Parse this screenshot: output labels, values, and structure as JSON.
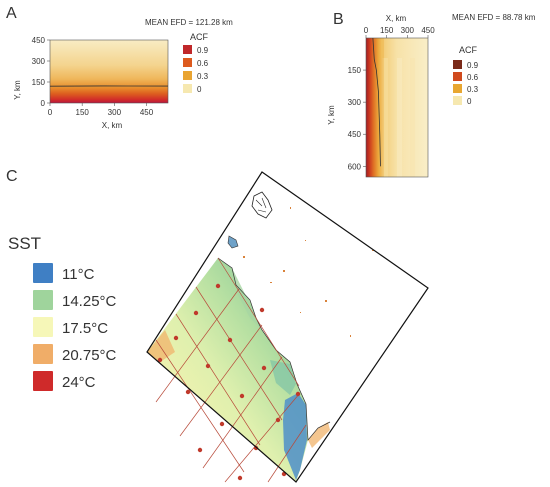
{
  "panels": {
    "A": {
      "letter": "A",
      "mean_efd": "MEAN EFD = 121.28 km",
      "xlabel": "X, km",
      "ylabel": "Y, km",
      "x_ticks": [
        "0",
        "150",
        "300",
        "450"
      ],
      "y_ticks": [
        "450",
        "300",
        "150",
        "0"
      ],
      "legend_title": "ACF",
      "legend_labels": [
        "0.9",
        "0.6",
        "0.3",
        "0"
      ]
    },
    "B": {
      "letter": "B",
      "mean_efd": "MEAN EFD = 88.78 km",
      "xlabel": "X, km",
      "ylabel": "Y, km",
      "x_ticks": [
        "0",
        "150",
        "300",
        "450"
      ],
      "y_ticks": [
        "150",
        "300",
        "450",
        "600"
      ],
      "legend_title": "ACF",
      "legend_labels": [
        "0.9",
        "0.6",
        "0.3",
        "0"
      ]
    },
    "C": {
      "letter": "C",
      "sst_title": "SST",
      "sst_labels": [
        "11°C",
        "14.25°C",
        "17.5°C",
        "20.75°C",
        "24°C"
      ]
    }
  },
  "chart_data": [
    {
      "type": "heatmap",
      "panel": "A",
      "xlabel": "X, km",
      "ylabel": "Y, km",
      "xlim": [
        0,
        550
      ],
      "ylim": [
        0,
        450
      ],
      "x_ticks": [
        0,
        150,
        300,
        450
      ],
      "y_ticks": [
        0,
        150,
        300,
        450
      ],
      "efd_km": 121.28,
      "colorbar": {
        "title": "ACF",
        "ticks": [
          0.9,
          0.6,
          0.3,
          0
        ],
        "colors": [
          "#c0282a",
          "#dd5a1e",
          "#e9a431",
          "#f6e8b0"
        ]
      },
      "acf_by_y": [
        {
          "y": 0,
          "acf": 0.95
        },
        {
          "y": 20,
          "acf": 0.9
        },
        {
          "y": 40,
          "acf": 0.8
        },
        {
          "y": 80,
          "acf": 0.6
        },
        {
          "y": 120,
          "acf": 0.45
        },
        {
          "y": 160,
          "acf": 0.35
        },
        {
          "y": 220,
          "acf": 0.25
        },
        {
          "y": 300,
          "acf": 0.15
        },
        {
          "y": 380,
          "acf": 0.08
        },
        {
          "y": 450,
          "acf": 0.03
        }
      ],
      "efd_line": [
        {
          "x": 0,
          "y": 120
        },
        {
          "x": 250,
          "y": 122
        },
        {
          "x": 550,
          "y": 121
        }
      ]
    },
    {
      "type": "heatmap",
      "panel": "B",
      "xlabel": "X, km",
      "ylabel": "Y, km",
      "xlim": [
        0,
        450
      ],
      "ylim": [
        0,
        650
      ],
      "x_ticks": [
        0,
        150,
        300,
        450
      ],
      "y_ticks": [
        150,
        300,
        450,
        600
      ],
      "efd_km": 88.78,
      "colorbar": {
        "title": "ACF",
        "ticks": [
          0.9,
          0.6,
          0.3,
          0
        ],
        "colors": [
          "#7a2a1a",
          "#d04a1e",
          "#e8a731",
          "#f6e8b0"
        ]
      },
      "acf_by_x": [
        {
          "x": 0,
          "acf": 0.95
        },
        {
          "x": 20,
          "acf": 0.8
        },
        {
          "x": 50,
          "acf": 0.6
        },
        {
          "x": 90,
          "acf": 0.4
        },
        {
          "x": 130,
          "acf": 0.28
        },
        {
          "x": 200,
          "acf": 0.15
        },
        {
          "x": 300,
          "acf": 0.08
        },
        {
          "x": 450,
          "acf": 0.03
        }
      ],
      "efd_line": [
        {
          "x": 50,
          "y": 0
        },
        {
          "x": 60,
          "y": 100
        },
        {
          "x": 75,
          "y": 150
        },
        {
          "x": 90,
          "y": 250
        },
        {
          "x": 95,
          "y": 350
        },
        {
          "x": 100,
          "y": 450
        },
        {
          "x": 105,
          "y": 600
        }
      ]
    },
    {
      "type": "heatmap",
      "panel": "C",
      "title": "SST",
      "legend": {
        "entries": [
          {
            "label": "11°C",
            "color": "#3f7fc4"
          },
          {
            "label": "14.25°C",
            "color": "#9fd49c"
          },
          {
            "label": "17.5°C",
            "color": "#f6f7b8"
          },
          {
            "label": "20.75°C",
            "color": "#f0ad68"
          },
          {
            "label": "24°C",
            "color": "#cf2a2a"
          }
        ]
      }
    }
  ]
}
